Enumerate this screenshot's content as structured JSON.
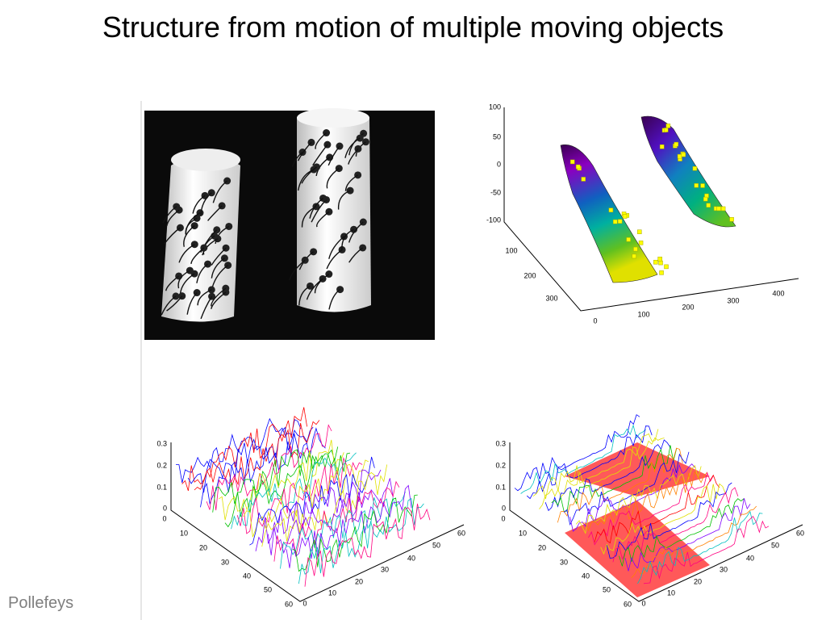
{
  "title": "Structure from motion of multiple moving objects",
  "footer": "Pollefeys",
  "surface_plot": {
    "z_ticks": [
      "100",
      "50",
      "0",
      "-50",
      "-100"
    ],
    "y_ticks": [
      "100",
      "200",
      "300"
    ],
    "x_ticks": [
      "0",
      "100",
      "200",
      "300",
      "400"
    ]
  },
  "noise_plots": [
    {
      "z_ticks": [
        "0.3",
        "0.2",
        "0.1",
        "0"
      ],
      "y_ticks": [
        "0",
        "10",
        "20",
        "30",
        "40",
        "50",
        "60"
      ],
      "x_ticks": [
        "0",
        "10",
        "20",
        "30",
        "40",
        "50",
        "60"
      ]
    },
    {
      "z_ticks": [
        "0.3",
        "0.2",
        "0.1",
        "0"
      ],
      "y_ticks": [
        "0",
        "10",
        "20",
        "30",
        "40",
        "50",
        "60"
      ],
      "x_ticks": [
        "0",
        "10",
        "20",
        "30",
        "40",
        "50",
        "60"
      ]
    }
  ]
}
